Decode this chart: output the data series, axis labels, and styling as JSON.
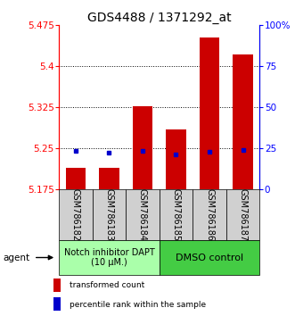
{
  "title": "GDS4488 / 1371292_at",
  "samples": [
    "GSM786182",
    "GSM786183",
    "GSM786184",
    "GSM786185",
    "GSM786186",
    "GSM786187"
  ],
  "bar_base": 5.175,
  "red_values": [
    5.215,
    5.215,
    5.328,
    5.285,
    5.452,
    5.422
  ],
  "blue_values": [
    5.245,
    5.243,
    5.245,
    5.24,
    5.244,
    5.248
  ],
  "ylim_left": [
    5.175,
    5.475
  ],
  "ylim_right": [
    0,
    100
  ],
  "yticks_left": [
    5.175,
    5.25,
    5.325,
    5.4,
    5.475
  ],
  "yticks_right": [
    0,
    25,
    50,
    75,
    100
  ],
  "ytick_labels_left": [
    "5.175",
    "5.25",
    "5.325",
    "5.4",
    "5.475"
  ],
  "ytick_labels_right": [
    "0",
    "25",
    "50",
    "75",
    "100%"
  ],
  "bar_color": "#cc0000",
  "dot_color": "#0000cc",
  "bar_width": 0.6,
  "group1_label": "Notch inhibitor DAPT\n(10 μM.)",
  "group2_label": "DMSO control",
  "group1_color": "#aaffaa",
  "group2_color": "#44cc44",
  "legend1": "transformed count",
  "legend2": "percentile rank within the sample",
  "agent_label": "agent",
  "title_fontsize": 10,
  "tick_fontsize": 7.5,
  "label_fontsize": 7
}
